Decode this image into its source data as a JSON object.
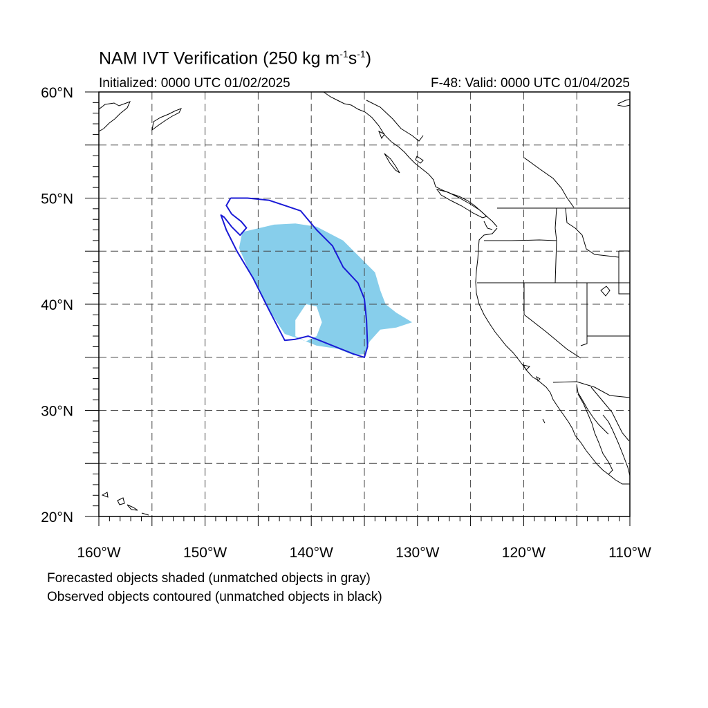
{
  "title": {
    "text_main": "NAM IVT Verification (250 kg m",
    "exp1": "-1",
    "text_mid": "s",
    "exp2": "-1",
    "text_end": ")"
  },
  "subtitle": {
    "initialized": "Initialized: 0000 UTC 01/02/2025",
    "valid": "F-48: Valid: 0000 UTC 01/04/2025"
  },
  "map": {
    "lon_range": [
      -160,
      -110
    ],
    "lat_range": [
      20,
      60
    ],
    "grid_lon_step": 5,
    "grid_lat_step": 5,
    "lon_tick_labels": [
      "160°W",
      "150°W",
      "140°W",
      "130°W",
      "120°W",
      "110°W"
    ],
    "lat_tick_labels": [
      "60°N",
      "50°N",
      "40°N",
      "30°N",
      "20°N"
    ],
    "forecast_object": {
      "color": "#87ceeb",
      "polygon_lonlat": [
        [
          -146.5,
          46.8
        ],
        [
          -143.5,
          47.5
        ],
        [
          -141.5,
          47.6
        ],
        [
          -139.5,
          47.3
        ],
        [
          -137.0,
          46.0
        ],
        [
          -135.5,
          44.5
        ],
        [
          -134.0,
          43.0
        ],
        [
          -133.5,
          41.3
        ],
        [
          -133.0,
          40.0
        ],
        [
          -132.0,
          39.2
        ],
        [
          -130.5,
          38.3
        ],
        [
          -132.0,
          37.8
        ],
        [
          -133.5,
          37.6
        ],
        [
          -134.5,
          36.5
        ],
        [
          -135.0,
          35.3
        ],
        [
          -136.0,
          35.2
        ],
        [
          -137.5,
          35.8
        ],
        [
          -139.5,
          36.1
        ],
        [
          -141.0,
          36.7
        ],
        [
          -142.5,
          37.2
        ],
        [
          -144.0,
          39.5
        ],
        [
          -145.8,
          43.0
        ],
        [
          -146.8,
          45.3
        ]
      ],
      "hole_lonlat": [
        [
          -140.5,
          40.0
        ],
        [
          -139.5,
          39.8
        ],
        [
          -139.0,
          38.3
        ],
        [
          -139.5,
          37.0
        ],
        [
          -140.5,
          36.5
        ],
        [
          -141.5,
          37.0
        ],
        [
          -141.5,
          38.5
        ]
      ]
    },
    "observed_object": {
      "color": "#1a1ad6",
      "polyline_lonlat": [
        [
          -147.6,
          50.0
        ],
        [
          -146.0,
          50.0
        ],
        [
          -144.0,
          49.8
        ],
        [
          -142.5,
          49.3
        ],
        [
          -141.0,
          48.8
        ],
        [
          -139.5,
          47.0
        ],
        [
          -138.0,
          45.5
        ],
        [
          -137.0,
          43.5
        ],
        [
          -135.6,
          42.0
        ],
        [
          -135.0,
          40.5
        ],
        [
          -134.8,
          38.5
        ],
        [
          -134.7,
          36.0
        ],
        [
          -135.0,
          35.0
        ],
        [
          -136.0,
          35.3
        ],
        [
          -137.5,
          35.9
        ],
        [
          -139.5,
          36.7
        ],
        [
          -140.3,
          37.0
        ],
        [
          -141.5,
          36.7
        ],
        [
          -142.5,
          36.6
        ],
        [
          -144.0,
          39.5
        ],
        [
          -145.5,
          42.5
        ],
        [
          -147.0,
          45.0
        ],
        [
          -148.0,
          47.0
        ],
        [
          -148.5,
          48.4
        ],
        [
          -148.2,
          48.2
        ],
        [
          -147.5,
          47.3
        ],
        [
          -146.7,
          46.5
        ],
        [
          -146.1,
          47.2
        ],
        [
          -146.6,
          47.8
        ],
        [
          -147.5,
          48.5
        ],
        [
          -148.0,
          49.3
        ],
        [
          -147.6,
          50.0
        ]
      ]
    }
  },
  "footer": {
    "line1": "Forecasted objects shaded (unmatched objects in gray)",
    "line2": "Observed objects contoured (unmatched objects in black)"
  }
}
